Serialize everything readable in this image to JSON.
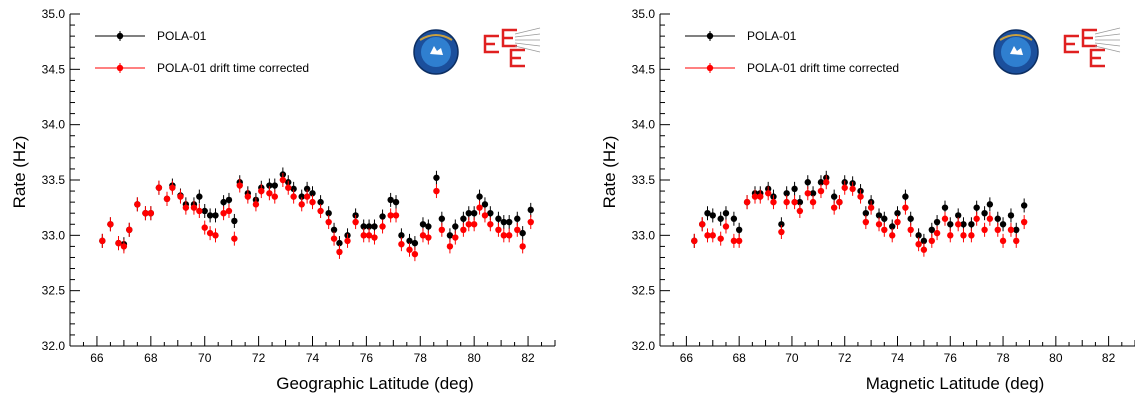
{
  "chart_data": [
    {
      "type": "scatter",
      "title": "",
      "xlabel": "Geographic Latitude (deg)",
      "ylabel": "Rate (Hz)",
      "xlim": [
        65,
        83
      ],
      "ylim": [
        32.0,
        35.0
      ],
      "xticks": [
        "66",
        "68",
        "70",
        "72",
        "74",
        "76",
        "78",
        "80",
        "82"
      ],
      "yticks": [
        "32.0",
        "32.5",
        "33.0",
        "33.5",
        "34.0",
        "34.5",
        "35.0"
      ],
      "grid": false,
      "legend": "top-left",
      "logos": [
        "POLARQUEST2018 logo",
        "EEE logo"
      ],
      "x": [
        66.2,
        66.5,
        66.8,
        67.0,
        67.2,
        67.5,
        67.8,
        68.0,
        68.3,
        68.6,
        68.8,
        69.1,
        69.3,
        69.6,
        69.8,
        70.0,
        70.2,
        70.4,
        70.7,
        70.9,
        71.1,
        71.3,
        71.6,
        71.9,
        72.1,
        72.4,
        72.6,
        72.9,
        73.1,
        73.3,
        73.6,
        73.8,
        74.0,
        74.3,
        74.6,
        74.8,
        75.0,
        75.3,
        75.6,
        75.9,
        76.1,
        76.3,
        76.6,
        76.9,
        77.1,
        77.3,
        77.6,
        77.8,
        78.1,
        78.3,
        78.6,
        78.8,
        79.1,
        79.3,
        79.6,
        79.8,
        80.0,
        80.2,
        80.4,
        80.6,
        80.9,
        81.1,
        81.3,
        81.6,
        81.8,
        82.1
      ],
      "series": [
        {
          "name": "POLA-01",
          "color": "#000000",
          "values": [
            32.95,
            33.1,
            32.93,
            32.92,
            33.05,
            33.28,
            33.2,
            33.2,
            33.43,
            33.33,
            33.45,
            33.36,
            33.28,
            33.28,
            33.35,
            33.22,
            33.18,
            33.18,
            33.3,
            33.32,
            33.13,
            33.48,
            33.38,
            33.32,
            33.43,
            33.45,
            33.45,
            33.55,
            33.48,
            33.42,
            33.35,
            33.42,
            33.38,
            33.3,
            33.2,
            33.05,
            32.93,
            33.0,
            33.18,
            33.08,
            33.08,
            33.08,
            33.17,
            33.32,
            33.3,
            33.0,
            32.95,
            32.93,
            33.1,
            33.08,
            33.52,
            33.15,
            33.0,
            33.08,
            33.15,
            33.2,
            33.2,
            33.35,
            33.28,
            33.2,
            33.15,
            33.12,
            33.12,
            33.15,
            33.02,
            33.23
          ]
        },
        {
          "name": "POLA-01 drift time corrected",
          "color": "#ff0000",
          "values": [
            32.95,
            33.1,
            32.93,
            32.9,
            33.05,
            33.28,
            33.2,
            33.2,
            33.43,
            33.33,
            33.43,
            33.35,
            33.25,
            33.25,
            33.22,
            33.07,
            33.02,
            33.0,
            33.2,
            33.22,
            32.97,
            33.45,
            33.35,
            33.28,
            33.4,
            33.38,
            33.35,
            33.5,
            33.43,
            33.35,
            33.28,
            33.35,
            33.3,
            33.22,
            33.12,
            32.97,
            32.85,
            32.95,
            33.12,
            33.0,
            33.0,
            32.98,
            33.08,
            33.18,
            33.18,
            32.92,
            32.87,
            32.83,
            33.0,
            32.98,
            33.4,
            33.05,
            32.9,
            32.98,
            33.05,
            33.1,
            33.1,
            33.25,
            33.18,
            33.1,
            33.05,
            33.0,
            33.0,
            33.05,
            32.9,
            33.12
          ]
        }
      ]
    },
    {
      "type": "scatter",
      "title": "",
      "xlabel": "Magnetic Latitude (deg)",
      "ylabel": "Rate (Hz)",
      "xlim": [
        65,
        83
      ],
      "ylim": [
        32.0,
        35.0
      ],
      "xticks": [
        "66",
        "68",
        "70",
        "72",
        "74",
        "76",
        "78",
        "80",
        "82"
      ],
      "yticks": [
        "32.0",
        "32.5",
        "33.0",
        "33.5",
        "34.0",
        "34.5",
        "35.0"
      ],
      "grid": false,
      "legend": "top-left",
      "logos": [
        "POLARQUEST2018 logo",
        "EEE logo"
      ],
      "x": [
        66.3,
        66.6,
        66.8,
        67.0,
        67.3,
        67.5,
        67.8,
        68.0,
        68.3,
        68.6,
        68.8,
        69.1,
        69.3,
        69.6,
        69.8,
        70.1,
        70.3,
        70.6,
        70.8,
        71.1,
        71.3,
        71.6,
        71.8,
        72.0,
        72.3,
        72.6,
        72.8,
        73.0,
        73.3,
        73.5,
        73.8,
        74.0,
        74.3,
        74.5,
        74.8,
        75.0,
        75.3,
        75.5,
        75.8,
        76.0,
        76.3,
        76.5,
        76.8,
        77.0,
        77.3,
        77.5,
        77.8,
        78.0,
        78.3,
        78.5,
        78.8
      ],
      "series": [
        {
          "name": "POLA-01",
          "color": "#000000",
          "values": [
            32.95,
            33.1,
            33.2,
            33.18,
            33.15,
            33.2,
            33.15,
            33.05,
            33.3,
            33.38,
            33.38,
            33.42,
            33.35,
            33.1,
            33.38,
            33.42,
            33.3,
            33.48,
            33.38,
            33.48,
            33.52,
            33.35,
            33.3,
            33.48,
            33.47,
            33.4,
            33.2,
            33.3,
            33.18,
            33.15,
            33.08,
            33.2,
            33.35,
            33.15,
            33.0,
            32.95,
            33.05,
            33.12,
            33.25,
            33.1,
            33.18,
            33.1,
            33.1,
            33.25,
            33.2,
            33.28,
            33.15,
            33.1,
            33.18,
            33.05,
            33.27
          ]
        },
        {
          "name": "POLA-01 drift time corrected",
          "color": "#ff0000",
          "values": [
            32.95,
            33.1,
            33.0,
            33.0,
            32.97,
            33.08,
            32.95,
            32.95,
            33.3,
            33.35,
            33.35,
            33.38,
            33.3,
            33.03,
            33.3,
            33.3,
            33.22,
            33.38,
            33.3,
            33.4,
            33.48,
            33.25,
            33.3,
            33.43,
            33.42,
            33.35,
            33.12,
            33.25,
            33.1,
            33.05,
            33.0,
            33.12,
            33.25,
            33.05,
            32.92,
            32.87,
            32.95,
            33.02,
            33.15,
            33.0,
            33.1,
            33.0,
            33.0,
            33.15,
            33.05,
            33.15,
            33.05,
            32.95,
            33.05,
            32.95,
            33.12
          ]
        }
      ]
    }
  ]
}
